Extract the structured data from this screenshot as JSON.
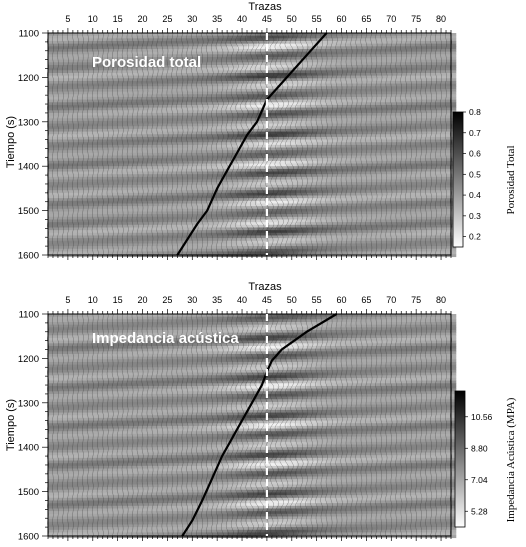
{
  "chart_data": [
    {
      "type": "heatmap",
      "label": "Porosidad total",
      "xlabel": "Trazas",
      "ylabel": "Tiempo (s)",
      "xlim": [
        1,
        82
      ],
      "ylim": [
        1100,
        1600
      ],
      "x_ticks": [
        "5",
        "10",
        "15",
        "20",
        "25",
        "30",
        "35",
        "40",
        "45",
        "50",
        "55",
        "60",
        "65",
        "70",
        "75",
        "80"
      ],
      "y_ticks": [
        "1100",
        "1200",
        "1300",
        "1400",
        "1500",
        "1600"
      ],
      "colorbar": {
        "label": "Porosidad Total",
        "ticks": [
          "0.8",
          "0.7",
          "0.6",
          "0.5",
          "0.4",
          "0.3",
          "0.2"
        ],
        "range": [
          0.15,
          0.8
        ],
        "colors": [
          "#ffffff",
          "#000000"
        ]
      },
      "marker_trace": 45,
      "boundary_line": {
        "x": [
          57,
          53,
          49,
          45,
          43,
          41,
          39,
          37,
          35,
          33,
          31,
          29,
          27
        ],
        "y": [
          1100,
          1150,
          1200,
          1250,
          1300,
          1330,
          1370,
          1410,
          1450,
          1500,
          1530,
          1565,
          1600
        ]
      }
    },
    {
      "type": "heatmap",
      "label": "Impedancia acústica",
      "xlabel": "Trazas",
      "ylabel": "Tiempo (s)",
      "xlim": [
        1,
        82
      ],
      "ylim": [
        1100,
        1600
      ],
      "x_ticks": [
        "5",
        "10",
        "15",
        "20",
        "25",
        "30",
        "35",
        "40",
        "45",
        "50",
        "55",
        "60",
        "65",
        "70",
        "75",
        "80"
      ],
      "y_ticks": [
        "1100",
        "1200",
        "1300",
        "1400",
        "1500",
        "1600"
      ],
      "colorbar": {
        "label": "Impedancia Acústica (MPA)",
        "ticks": [
          "10.56",
          "8.80",
          "7.04",
          "5.28"
        ],
        "range": [
          4.4,
          12.0
        ],
        "colors": [
          "#ffffff",
          "#000000"
        ]
      },
      "marker_trace": 45,
      "boundary_line": {
        "x": [
          59,
          53,
          48,
          46,
          45,
          44,
          42,
          40,
          38,
          36,
          34,
          32,
          30,
          28
        ],
        "y": [
          1100,
          1140,
          1180,
          1205,
          1230,
          1260,
          1300,
          1340,
          1380,
          1420,
          1470,
          1520,
          1565,
          1600
        ]
      }
    }
  ]
}
